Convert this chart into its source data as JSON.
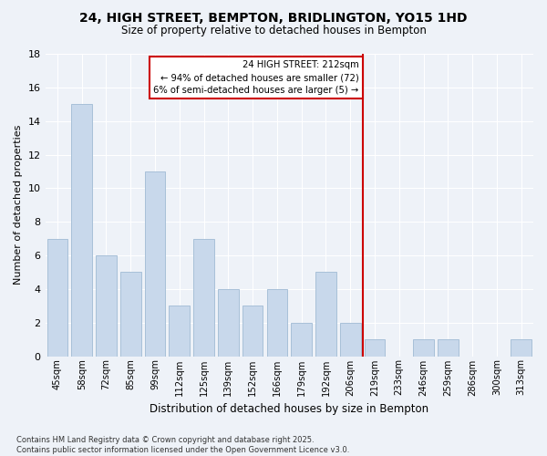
{
  "title": "24, HIGH STREET, BEMPTON, BRIDLINGTON, YO15 1HD",
  "subtitle": "Size of property relative to detached houses in Bempton",
  "xlabel": "Distribution of detached houses by size in Bempton",
  "ylabel": "Number of detached properties",
  "categories": [
    "45sqm",
    "58sqm",
    "72sqm",
    "85sqm",
    "99sqm",
    "112sqm",
    "125sqm",
    "139sqm",
    "152sqm",
    "166sqm",
    "179sqm",
    "192sqm",
    "206sqm",
    "219sqm",
    "233sqm",
    "246sqm",
    "259sqm",
    "286sqm",
    "300sqm",
    "313sqm"
  ],
  "values": [
    7,
    15,
    6,
    5,
    11,
    3,
    7,
    4,
    3,
    4,
    2,
    5,
    2,
    1,
    0,
    1,
    1,
    0,
    0,
    1
  ],
  "bar_color": "#c8d8eb",
  "bar_edgecolor": "#a8c0d8",
  "bar_width": 0.85,
  "vline_x": 12.5,
  "vline_color": "#cc0000",
  "annotation_title": "24 HIGH STREET: 212sqm",
  "annotation_line1": "← 94% of detached houses are smaller (72)",
  "annotation_line2": "6% of semi-detached houses are larger (5) →",
  "annotation_box_color": "#cc0000",
  "ylim": [
    0,
    18
  ],
  "yticks": [
    0,
    2,
    4,
    6,
    8,
    10,
    12,
    14,
    16,
    18
  ],
  "background_color": "#eef2f8",
  "grid_color": "#ffffff",
  "footer_line1": "Contains HM Land Registry data © Crown copyright and database right 2025.",
  "footer_line2": "Contains public sector information licensed under the Open Government Licence v3.0."
}
